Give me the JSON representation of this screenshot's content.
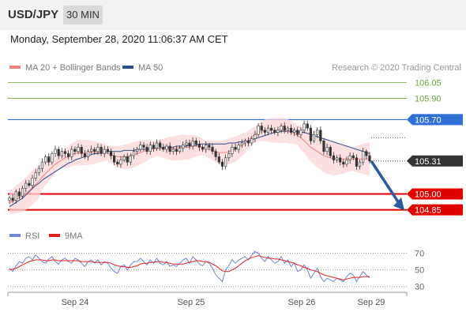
{
  "header": {
    "symbol": "USD/JPY",
    "timeframe": "30 MIN"
  },
  "timestamp": "Monday, September 28, 2020 11:06:37 AM CET",
  "legend": {
    "ma20_label": "MA 20 + Bollinger Bands",
    "ma50_label": "MA 50",
    "copyright": "Research © 2020 Trading Central",
    "rsi_label": "RSI",
    "ma9_label": "9MA"
  },
  "colors": {
    "ma20": "#f08080",
    "ma50": "#2a4d8f",
    "band": "#fbd5d8",
    "rsi": "#7085d6",
    "ma9": "#e02020",
    "support": "#e00000",
    "resistance_blue": "#2f6fd6",
    "target_green": "#6aa83a",
    "last": "#333333"
  },
  "chart_data": [
    {
      "type": "candlestick",
      "title": "",
      "x_labels": [
        "Sep 24",
        "Sep 25",
        "Sep 26",
        "Sep 29"
      ],
      "ylim": [
        104.78,
        106.12
      ],
      "levels": [
        {
          "label": "106.05",
          "value": 106.05,
          "style": "green"
        },
        {
          "label": "105.90",
          "value": 105.9,
          "style": "green"
        },
        {
          "label": "105.70",
          "value": 105.7,
          "style": "blue"
        },
        {
          "label": "105.31",
          "value": 105.31,
          "style": "last"
        },
        {
          "label": "105.00",
          "value": 105.0,
          "style": "red"
        },
        {
          "label": "104.85",
          "value": 104.85,
          "style": "red"
        }
      ],
      "close_series": [
        104.96,
        104.94,
        105.02,
        104.98,
        105.05,
        105.1,
        105.08,
        105.15,
        105.2,
        105.24,
        105.3,
        105.35,
        105.3,
        105.38,
        105.42,
        105.36,
        105.4,
        105.38,
        105.35,
        105.42,
        105.4,
        105.44,
        105.38,
        105.35,
        105.4,
        105.42,
        105.4,
        105.44,
        105.38,
        105.42,
        105.4,
        105.36,
        105.3,
        105.28,
        105.32,
        105.35,
        105.3,
        105.36,
        105.4,
        105.42,
        105.46,
        105.44,
        105.4,
        105.46,
        105.43,
        105.48,
        105.44,
        105.42,
        105.45,
        105.4,
        105.42,
        105.4,
        105.43,
        105.46,
        105.48,
        105.45,
        105.5,
        105.47,
        105.44,
        105.42,
        105.46,
        105.44,
        105.4,
        105.35,
        105.3,
        105.26,
        105.34,
        105.38,
        105.44,
        105.42,
        105.46,
        105.48,
        105.5,
        105.48,
        105.52,
        105.56,
        105.64,
        105.6,
        105.58,
        105.62,
        105.6,
        105.58,
        105.6,
        105.64,
        105.6,
        105.62,
        105.58,
        105.6,
        105.56,
        105.6,
        105.66,
        105.62,
        105.5,
        105.56,
        105.6,
        105.5,
        105.4,
        105.44,
        105.36,
        105.32,
        105.34,
        105.3,
        105.28,
        105.32,
        105.36,
        105.34,
        105.26,
        105.3,
        105.4,
        105.36,
        105.31
      ],
      "ma20_series": [
        104.92,
        104.93,
        104.95,
        104.96,
        104.98,
        105.0,
        105.03,
        105.06,
        105.09,
        105.12,
        105.16,
        105.19,
        105.22,
        105.25,
        105.28,
        105.3,
        105.32,
        105.34,
        105.35,
        105.37,
        105.38,
        105.39,
        105.39,
        105.39,
        105.39,
        105.39,
        105.39,
        105.39,
        105.39,
        105.39,
        105.38,
        105.37,
        105.36,
        105.35,
        105.35,
        105.35,
        105.35,
        105.36,
        105.37,
        105.38,
        105.39,
        105.4,
        105.41,
        105.42,
        105.42,
        105.43,
        105.43,
        105.43,
        105.43,
        105.43,
        105.43,
        105.43,
        105.44,
        105.44,
        105.44,
        105.44,
        105.45,
        105.45,
        105.45,
        105.44,
        105.43,
        105.42,
        105.41,
        105.4,
        105.39,
        105.39,
        105.39,
        105.4,
        105.41,
        105.42,
        105.44,
        105.46,
        105.48,
        105.51,
        105.54,
        105.56,
        105.58,
        105.59,
        105.6,
        105.6,
        105.6,
        105.6,
        105.6,
        105.6,
        105.6,
        105.59,
        105.58,
        105.57,
        105.55,
        105.53,
        105.5,
        105.47,
        105.44,
        105.42,
        105.4,
        105.38,
        105.36,
        105.35,
        105.34,
        105.33,
        105.33,
        105.33,
        105.33,
        105.33,
        105.33,
        105.33,
        105.33,
        105.33,
        105.33,
        105.33,
        105.33
      ],
      "ma50_series": [
        104.88,
        104.9,
        104.92,
        104.94,
        104.96,
        104.99,
        105.02,
        105.05,
        105.08,
        105.1,
        105.13,
        105.15,
        105.17,
        105.19,
        105.21,
        105.23,
        105.25,
        105.27,
        105.29,
        105.3,
        105.32,
        105.33,
        105.34,
        105.35,
        105.36,
        105.37,
        105.38,
        105.38,
        105.39,
        105.39,
        105.4,
        105.4,
        105.4,
        105.4,
        105.4,
        105.41,
        105.41,
        105.41,
        105.41,
        105.42,
        105.42,
        105.42,
        105.42,
        105.43,
        105.43,
        105.43,
        105.43,
        105.44,
        105.44,
        105.44,
        105.44,
        105.45,
        105.45,
        105.45,
        105.45,
        105.46,
        105.46,
        105.46,
        105.47,
        105.47,
        105.47,
        105.47,
        105.47,
        105.47,
        105.47,
        105.47,
        105.47,
        105.48,
        105.48,
        105.48,
        105.49,
        105.49,
        105.5,
        105.5,
        105.51,
        105.52,
        105.53,
        105.54,
        105.55,
        105.56,
        105.57,
        105.58,
        105.58,
        105.59,
        105.59,
        105.59,
        105.59,
        105.59,
        105.59,
        105.58,
        105.58,
        105.57,
        105.56,
        105.55,
        105.54,
        105.53,
        105.52,
        105.51,
        105.5,
        105.49,
        105.48,
        105.47,
        105.46,
        105.45,
        105.44,
        105.43,
        105.42,
        105.41,
        105.4,
        105.39,
        105.38
      ]
    },
    {
      "type": "line",
      "title": "RSI",
      "ylim": [
        25,
        80
      ],
      "y_ticks": [
        70,
        50,
        30
      ],
      "rsi_series": [
        52,
        48,
        55,
        60,
        58,
        64,
        66,
        62,
        68,
        64,
        60,
        58,
        63,
        66,
        60,
        57,
        62,
        64,
        60,
        58,
        64,
        62,
        58,
        54,
        60,
        62,
        58,
        62,
        56,
        60,
        58,
        52,
        48,
        46,
        54,
        56,
        50,
        56,
        60,
        60,
        64,
        60,
        56,
        62,
        58,
        64,
        58,
        56,
        60,
        54,
        56,
        54,
        58,
        62,
        64,
        58,
        66,
        62,
        57,
        55,
        60,
        58,
        52,
        44,
        40,
        36,
        50,
        55,
        62,
        58,
        62,
        64,
        66,
        62,
        68,
        72,
        70,
        64,
        60,
        66,
        62,
        58,
        60,
        66,
        58,
        62,
        54,
        58,
        48,
        50,
        56,
        50,
        40,
        46,
        52,
        42,
        36,
        40,
        38,
        36,
        40,
        38,
        36,
        42,
        46,
        44,
        36,
        42,
        48,
        44,
        40
      ],
      "ma9_series": [
        50,
        51,
        52,
        54,
        56,
        58,
        60,
        61,
        62,
        62,
        62,
        61,
        61,
        62,
        62,
        61,
        61,
        61,
        61,
        61,
        61,
        61,
        60,
        60,
        60,
        60,
        59,
        59,
        59,
        59,
        59,
        58,
        56,
        55,
        54,
        54,
        53,
        53,
        54,
        55,
        57,
        58,
        58,
        59,
        59,
        60,
        60,
        59,
        59,
        58,
        57,
        57,
        57,
        57,
        58,
        59,
        60,
        61,
        61,
        60,
        60,
        59,
        57,
        55,
        52,
        49,
        48,
        48,
        50,
        52,
        55,
        58,
        61,
        63,
        65,
        66,
        67,
        66,
        65,
        64,
        64,
        63,
        63,
        62,
        61,
        60,
        59,
        58,
        56,
        55,
        53,
        52,
        50,
        49,
        48,
        46,
        44,
        43,
        42,
        41,
        40,
        39,
        38,
        39,
        40,
        41,
        41,
        41,
        42,
        42,
        42
      ]
    }
  ]
}
